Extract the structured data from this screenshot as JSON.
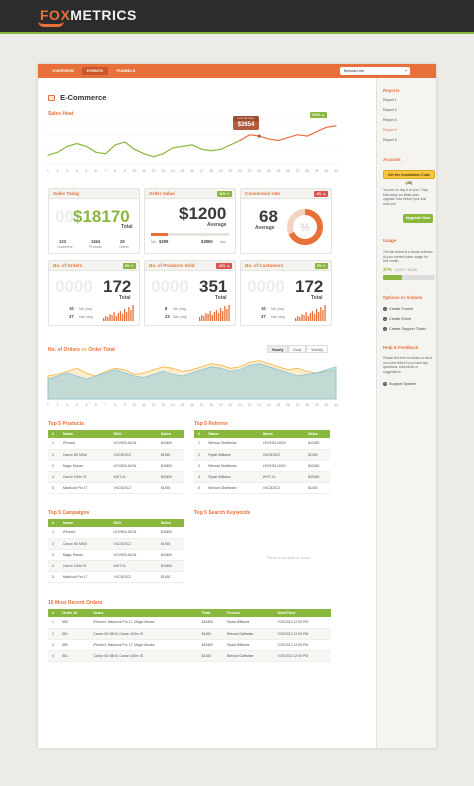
{
  "brand": {
    "name_part1": "FOX",
    "name_part2": "METRICS",
    "accent": "#e8703a",
    "green": "#8ab83f"
  },
  "nav": {
    "tabs": [
      "OVERVIEW",
      "EVENTS",
      "FUNNELS"
    ],
    "active": "EVENTS",
    "account": "Behzad.me"
  },
  "page": {
    "title": "E-Commerce"
  },
  "sales_heat": {
    "label": "Sales Heat",
    "tooltip_label": "Last 30 days",
    "tooltip_value": "$2654",
    "change": "110% ▲",
    "x_labels": [
      "1",
      "2",
      "3",
      "4",
      "5",
      "6",
      "7",
      "8",
      "9",
      "10",
      "11",
      "12",
      "13",
      "14",
      "15",
      "16",
      "17",
      "18",
      "19",
      "20",
      "21",
      "22",
      "23",
      "24",
      "25",
      "26",
      "27",
      "28",
      "29",
      "30",
      "31"
    ]
  },
  "chart_data": [
    {
      "type": "line",
      "title": "Sales Heat",
      "x": [
        1,
        2,
        3,
        4,
        5,
        6,
        7,
        8,
        9,
        10,
        11,
        12,
        13,
        14,
        15,
        16,
        17,
        18,
        19,
        20,
        21,
        22,
        23,
        24,
        25,
        26,
        27,
        28,
        29,
        30,
        31
      ],
      "series": [
        {
          "name": "",
          "values": [
            32,
            36,
            44,
            48,
            44,
            36,
            34,
            46,
            50,
            40,
            34,
            30,
            34,
            42,
            44,
            46,
            40,
            38,
            40,
            46,
            52,
            60,
            58,
            54,
            52,
            56,
            60,
            58,
            64,
            70,
            72
          ]
        }
      ]
    },
    {
      "type": "area",
      "title": "No. of Orders vs Order Total",
      "x": [
        1,
        2,
        3,
        4,
        5,
        6,
        7,
        8,
        9,
        10,
        11,
        12,
        13,
        14,
        15,
        16,
        17,
        18,
        19,
        20,
        21,
        22,
        23,
        24,
        25,
        26,
        27,
        28,
        29,
        30,
        31
      ],
      "series": [
        {
          "name": "No. of Orders",
          "values": [
            30,
            32,
            36,
            40,
            34,
            30,
            36,
            40,
            38,
            32,
            34,
            38,
            42,
            40,
            36,
            38,
            42,
            46,
            44,
            40,
            42,
            48,
            50,
            46,
            42,
            38,
            40,
            36,
            34,
            36,
            38
          ]
        },
        {
          "name": "Order Total",
          "values": [
            26,
            30,
            34,
            30,
            26,
            30,
            34,
            38,
            34,
            30,
            28,
            32,
            36,
            32,
            30,
            34,
            38,
            42,
            40,
            36,
            38,
            44,
            46,
            42,
            38,
            34,
            30,
            32,
            34,
            38,
            42
          ]
        }
      ]
    }
  ],
  "kpi": {
    "sales_today": {
      "label": "Sales Today",
      "ghost": "00",
      "value": "$18170",
      "sub": "Total",
      "stats": [
        {
          "val": "123",
          "lbl": "Customers"
        },
        {
          "val": "1164",
          "lbl": "Products"
        },
        {
          "val": "26",
          "lbl": "Orders"
        }
      ]
    },
    "order_value": {
      "label": "Order Value",
      "badge": "11% ▼",
      "value": "$1200",
      "sub": "Average",
      "min": "$299",
      "max": "$3850",
      "min_lbl": "Min",
      "max_lbl": "Max",
      "progress": 0.22
    },
    "conversion": {
      "label": "Conversion rate",
      "badge": "-4% ▲",
      "value": "68",
      "sub": "Average",
      "unit": "%",
      "rate": 0.68
    },
    "orders": {
      "label": "No. of Orders",
      "badge": "3% ▼",
      "ghost": "0000",
      "value": "172",
      "sub": "Total",
      "min": "10",
      "max": "37",
      "min_lbl": "Min (day)",
      "max_lbl": "Max (day)"
    },
    "products_sold": {
      "label": "No. of Products Sold",
      "badge": "-11% ▲",
      "ghost": "0000",
      "value": "351",
      "sub": "Total",
      "min": "8",
      "max": "23",
      "min_lbl": "Min (day)",
      "max_lbl": "Max (day)"
    },
    "customers": {
      "label": "No. of Customers",
      "badge": "2% ▼",
      "ghost": "0000",
      "value": "172",
      "sub": "Total",
      "min": "10",
      "max": "37",
      "min_lbl": "Min (day)",
      "max_lbl": "Max (day)"
    }
  },
  "orders_chart": {
    "label_a": "No. of Orders",
    "vs": "vs",
    "label_b": "Order Total",
    "toggles": [
      "Hourly",
      "Daily",
      "Weekly"
    ]
  },
  "top_products": {
    "label": "Top 5 Products",
    "columns": [
      "#",
      "Name",
      "SKU",
      "Sales"
    ],
    "rows": [
      [
        "1",
        "iPhone4",
        "LEV/NSL16GN",
        "$43450"
      ],
      [
        "2",
        "Canon 5D MKIII",
        "V4C3DSC2",
        "$1450"
      ],
      [
        "3",
        "Magic Mouse",
        "LEV/NSL16GN",
        "$43450"
      ],
      [
        "4",
        "Canon 100m IS",
        "WHT-XL",
        "$43450"
      ],
      [
        "5",
        "Macbook Pro 17",
        "V4C3DSC2",
        "$1450"
      ]
    ]
  },
  "top_referrer": {
    "label": "Top 5 Referrer",
    "columns": [
      "#",
      "Name",
      "Items",
      "Sales"
    ],
    "rows": [
      [
        "1",
        "Behzad Ghaffarian",
        "LEV/NSL16GN",
        "$43450"
      ],
      [
        "2",
        "Rydal Williams",
        "V4C3DSC2",
        "$1450"
      ],
      [
        "3",
        "Behzad Ghaffarian",
        "LEV/NSL16GN",
        "$43450"
      ],
      [
        "4",
        "Rydal Williams",
        "WHT-XL",
        "$43450"
      ],
      [
        "5",
        "Behzad Ghaffarian",
        "V4C3DSC2",
        "$1450"
      ]
    ]
  },
  "top_campaigns": {
    "label": "Top 5 Campaigns",
    "columns": [
      "#",
      "Name",
      "SKU",
      "Sales"
    ],
    "rows": [
      [
        "1",
        "iPhone4",
        "LEV/NSL16GN",
        "$43450"
      ],
      [
        "2",
        "Canon 5D MKIII",
        "V4C3DSC2",
        "$1450"
      ],
      [
        "3",
        "Magic Mouse",
        "LEV/NSL16GN",
        "$43450"
      ],
      [
        "4",
        "Canon 100m IS",
        "WHT-XL",
        "$43450"
      ],
      [
        "5",
        "Macbook Pro 17",
        "V4C3DSC2",
        "$1450"
      ]
    ]
  },
  "top_keywords": {
    "label": "Top 5 Search Keywords",
    "empty": "There is no data to show!"
  },
  "recent_orders": {
    "label": "10 Most  Recent Orders",
    "columns": [
      "#",
      "Order Id",
      "Items",
      "Total",
      "Person",
      "Date/Time"
    ],
    "rows": [
      [
        "1",
        "580",
        "iPhone4, Macbook Pro 17, Magic Mouse",
        "$43450",
        "Rydal Williams",
        "7/20/2012 12:05 PM"
      ],
      [
        "2",
        "581",
        "Canon 5D MKIII, Canon 100m IS",
        "$1450",
        "Behzad Gaffarian",
        "7/20/2012 12:05 PM"
      ],
      [
        "3",
        "580",
        "iPhone4, Macbook Pro 17, Magic Mouse",
        "$43450",
        "Rydal Williams",
        "7/20/2012 12:05 PM"
      ],
      [
        "4",
        "581",
        "Canon 5D MKIII, Canon 100m IS",
        "$1450",
        "Behzad Gaffarian",
        "7/20/2012 12:05 PM"
      ]
    ]
  },
  "sidebar": {
    "reports_title": "Reports",
    "reports": [
      "Report 1",
      "Report 2",
      "Report 3",
      "Report 4",
      "Report 5"
    ],
    "active_report": "Report 4",
    "account_title": "Account",
    "install_btn": "Get the Installation Code (JS)",
    "trial_text": "You are on day 8 of your 7 day trial using our Basic plan - upgrade now before your trial runs out!",
    "upgrade_btn": "Upgrade Now",
    "usage_title": "Usage",
    "usage_text": "The bar below is a visual indicator of your current token usage for this month.",
    "usage_pct": "37%",
    "usage_count": "13,000 / 35,000",
    "usage_fraction": 0.37,
    "options_title": "Options or Actions",
    "options": [
      "Create Funnel",
      "Create Event",
      "Create Support Ticket"
    ],
    "help_title": "Help & Feedback",
    "help_text": "Please feel free to review or send us a new ticket if you have any questions, comments or suggestions.",
    "support": "Support System"
  }
}
